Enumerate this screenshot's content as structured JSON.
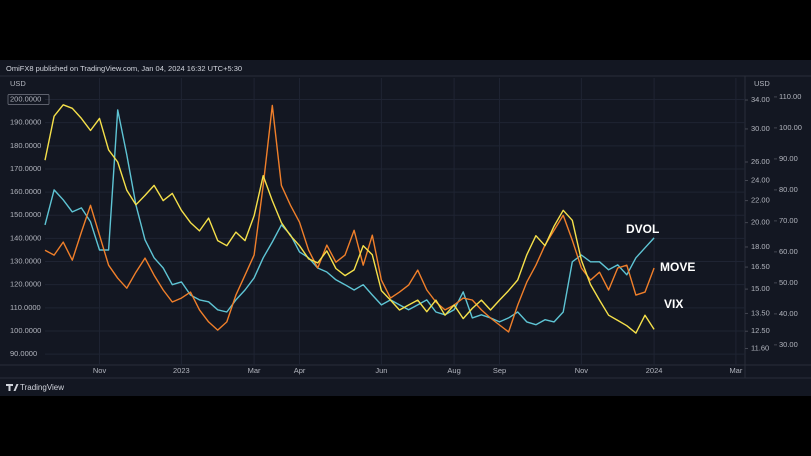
{
  "header": {
    "text": "OmiFX8 published on TradingView.com, Jan 04, 2024 16:32 UTC+5:30"
  },
  "footer": {
    "brand": "TradingView"
  },
  "chart_data": {
    "type": "line",
    "y_label": "USD",
    "y2_label": "USD",
    "categories": [
      null,
      null,
      null,
      null,
      null,
      null,
      "Nov",
      null,
      null,
      null,
      null,
      null,
      null,
      null,
      null,
      "2023",
      null,
      null,
      null,
      null,
      null,
      null,
      null,
      "Mar",
      null,
      null,
      null,
      null,
      "Apr",
      null,
      null,
      null,
      null,
      null,
      null,
      null,
      null,
      "Jun",
      null,
      null,
      null,
      null,
      null,
      null,
      null,
      "Aug",
      null,
      null,
      null,
      null,
      "Sep",
      null,
      null,
      null,
      null,
      null,
      null,
      null,
      null,
      "Nov",
      null,
      null,
      null,
      null,
      null,
      null,
      null,
      "2024",
      null,
      null,
      null,
      null,
      null,
      null,
      null,
      null,
      "Mar",
      null
    ],
    "series": [
      {
        "name": "DVOL",
        "color": "#5ec4d4",
        "axis": "y3",
        "values": [
          68.7,
          80.0,
          76.8,
          72.9,
          74.2,
          69.7,
          60.6,
          60.6,
          105.8,
          91.3,
          75.2,
          63.9,
          58.1,
          54.8,
          49.4,
          50.3,
          46.1,
          44.5,
          43.9,
          41.3,
          40.6,
          44.5,
          47.7,
          51.6,
          58.1,
          63.2,
          68.7,
          65.5,
          60.0,
          58.1,
          54.8,
          53.5,
          51.0,
          49.4,
          47.7,
          49.4,
          46.1,
          42.9,
          44.5,
          42.9,
          41.3,
          42.9,
          44.5,
          40.6,
          39.7,
          41.3,
          47.1,
          38.7,
          39.7,
          38.7,
          37.4,
          38.7,
          40.6,
          37.4,
          36.5,
          38.1,
          37.4,
          40.6,
          56.8,
          59.0,
          56.8,
          56.8,
          54.2,
          55.8,
          52.6,
          58.1,
          61.3,
          64.5,
          null,
          null,
          null,
          null,
          null,
          null,
          null,
          null,
          null,
          null
        ]
      },
      {
        "name": "MOVE",
        "color": "#f07f2a",
        "axis": "y",
        "values": [
          134.9,
          132.8,
          138.4,
          130.6,
          142.7,
          154.3,
          141.4,
          128.4,
          122.8,
          118.5,
          125.4,
          131.5,
          124.1,
          117.7,
          112.5,
          114.2,
          116.8,
          109.1,
          103.9,
          100.4,
          103.9,
          115.5,
          124.1,
          132.8,
          162.9,
          197.4,
          162.9,
          154.3,
          147.0,
          134.9,
          127.2,
          137.1,
          129.7,
          132.8,
          143.5,
          128.4,
          141.4,
          122.0,
          114.2,
          116.8,
          119.8,
          126.3,
          117.7,
          112.5,
          109.1,
          111.2,
          114.2,
          113.4,
          109.1,
          105.6,
          102.6,
          99.6,
          111.2,
          121.1,
          128.4,
          137.1,
          143.5,
          150.0,
          139.2,
          127.2,
          122.0,
          125.4,
          117.7,
          127.2,
          128.4,
          115.5,
          116.8,
          127.2,
          null,
          null,
          null,
          null,
          null,
          null,
          null,
          null,
          null,
          null
        ]
      },
      {
        "name": "VIX",
        "color": "#f5e04a",
        "axis": "y2",
        "values": [
          26.2,
          31.7,
          33.3,
          32.8,
          31.4,
          29.8,
          31.4,
          27.4,
          26.0,
          23.0,
          21.6,
          22.5,
          23.5,
          22.0,
          22.7,
          21.1,
          20.0,
          19.3,
          20.4,
          18.5,
          18.1,
          19.2,
          18.5,
          20.6,
          24.5,
          22.0,
          20.0,
          18.9,
          18.1,
          17.1,
          16.8,
          17.7,
          16.4,
          15.9,
          16.3,
          18.1,
          17.4,
          14.9,
          14.3,
          13.7,
          14.0,
          14.3,
          13.6,
          14.3,
          13.4,
          14.0,
          13.2,
          13.8,
          14.3,
          13.7,
          14.3,
          14.9,
          15.6,
          17.4,
          18.9,
          18.1,
          19.7,
          21.1,
          20.2,
          17.0,
          15.3,
          14.3,
          13.4,
          13.1,
          12.8,
          12.4,
          13.4,
          12.6,
          null,
          null,
          null,
          null,
          null,
          null,
          null,
          null,
          null,
          null
        ]
      }
    ],
    "ylim": [
      85.3,
      209.3
    ],
    "yticks": [
      {
        "value": 200,
        "label": "200.0000"
      },
      {
        "value": 190,
        "label": "190.0000"
      },
      {
        "value": 180,
        "label": "180.0000"
      },
      {
        "value": 170,
        "label": "170.0000"
      },
      {
        "value": 160,
        "label": "160.0000"
      },
      {
        "value": 150,
        "label": "150.0000"
      },
      {
        "value": 140,
        "label": "140.0000"
      },
      {
        "value": 130,
        "label": "130.0000"
      },
      {
        "value": 120,
        "label": "120.0000"
      },
      {
        "value": 110,
        "label": "110.0000"
      },
      {
        "value": 100,
        "label": "100.0000"
      },
      {
        "value": 90,
        "label": "90.0000"
      }
    ],
    "y2lim": [
      10.8,
      37.4
    ],
    "y2scale": "log",
    "y2ticks": [
      {
        "value": 34,
        "label": "34.00"
      },
      {
        "value": 30,
        "label": "30.00"
      },
      {
        "value": 26,
        "label": "26.00"
      },
      {
        "value": 24,
        "label": "24.00"
      },
      {
        "value": 22,
        "label": "22.00"
      },
      {
        "value": 20,
        "label": "20.00"
      },
      {
        "value": 18,
        "label": "18.00"
      },
      {
        "value": 16.5,
        "label": "16.50"
      },
      {
        "value": 15,
        "label": "15.00"
      },
      {
        "value": 13.5,
        "label": "13.50"
      },
      {
        "value": 12.5,
        "label": "12.50"
      },
      {
        "value": 11.6,
        "label": "11.60"
      }
    ],
    "y3lim": [
      23.5,
      116.1
    ],
    "y3ticks": [
      {
        "value": 110,
        "label": "110.00"
      },
      {
        "value": 100,
        "label": "100.00"
      },
      {
        "value": 90,
        "label": "90.00"
      },
      {
        "value": 80,
        "label": "80.00"
      },
      {
        "value": 70,
        "label": "70.00"
      },
      {
        "value": 60,
        "label": "60.00"
      },
      {
        "value": 50,
        "label": "50.00"
      },
      {
        "value": 40,
        "label": "40.00"
      },
      {
        "value": 30,
        "label": "30.00"
      }
    ],
    "grid": true
  }
}
